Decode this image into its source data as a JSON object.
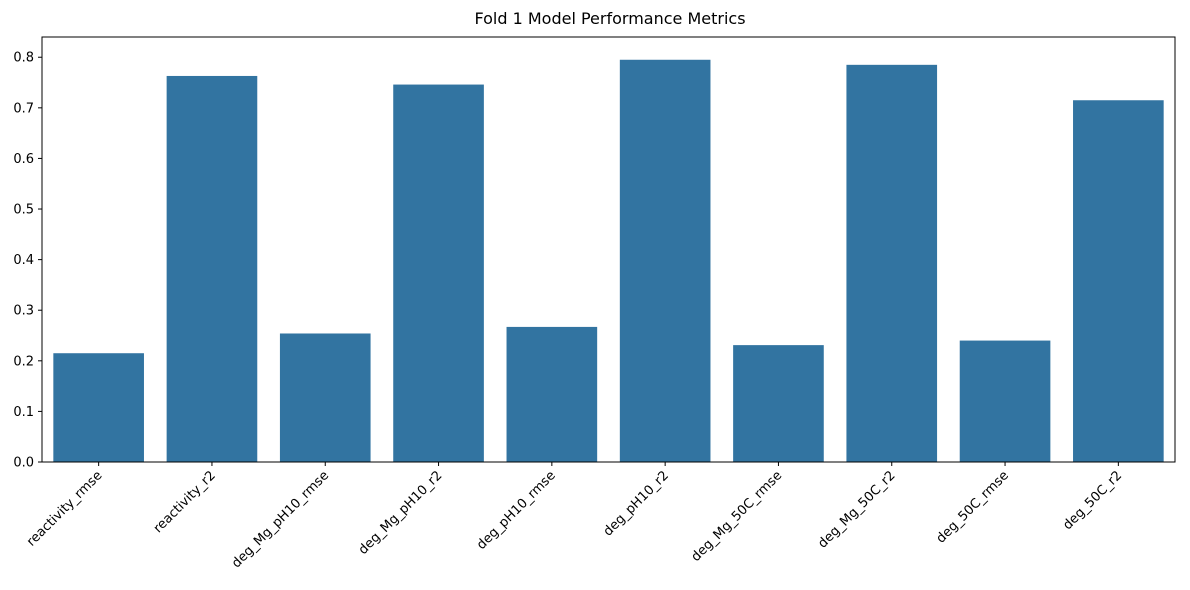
{
  "chart_data": {
    "type": "bar",
    "title": "Fold 1 Model Performance Metrics",
    "xlabel": "",
    "ylabel": "",
    "categories": [
      "reactivity_rmse",
      "reactivity_r2",
      "deg_Mg_pH10_rmse",
      "deg_Mg_pH10_r2",
      "deg_pH10_rmse",
      "deg_pH10_r2",
      "deg_Mg_50C_rmse",
      "deg_Mg_50C_r2",
      "deg_50C_rmse",
      "deg_50C_r2"
    ],
    "values": [
      0.215,
      0.763,
      0.254,
      0.746,
      0.267,
      0.795,
      0.231,
      0.785,
      0.24,
      0.715
    ],
    "ylim": [
      0,
      0.84
    ],
    "yticks": [
      0.0,
      0.1,
      0.2,
      0.3,
      0.4,
      0.5,
      0.6,
      0.7,
      0.8
    ],
    "ytick_labels": [
      "0.0",
      "0.1",
      "0.2",
      "0.3",
      "0.4",
      "0.5",
      "0.6",
      "0.7",
      "0.8"
    ],
    "grid": false,
    "bar_color": "#3274a1"
  }
}
